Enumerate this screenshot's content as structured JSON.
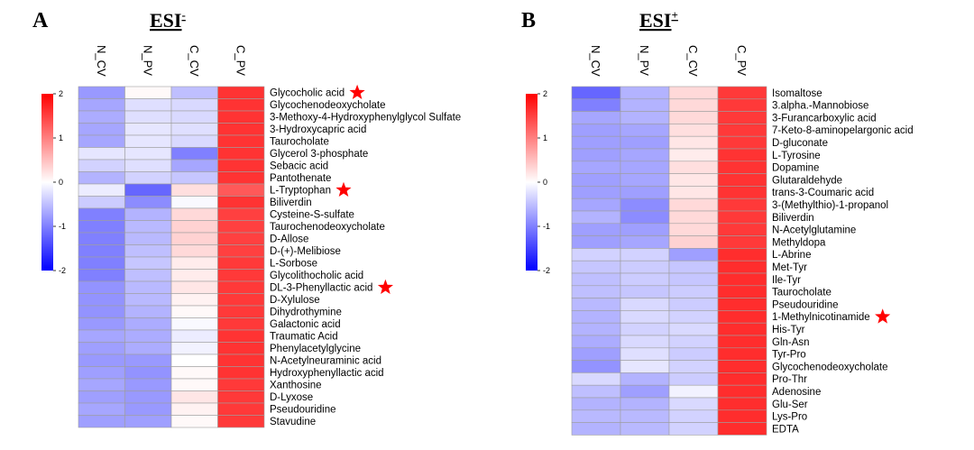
{
  "palette": {
    "low": "#0000ff",
    "mid": "#ffffff",
    "high": "#ff0000",
    "grid": "#9e9e9e",
    "star": "#ff0000"
  },
  "chart_data": [
    {
      "type": "heatmap",
      "panel_label": "A",
      "title_main": "ESI",
      "title_sup": "-",
      "columns": [
        "N_CV",
        "N_PV",
        "C_CV",
        "C_PV"
      ],
      "colorbar": {
        "min": -2,
        "max": 2,
        "ticks": [
          "2",
          "1",
          "0",
          "-1",
          "-2"
        ]
      },
      "rows": [
        {
          "name": "Glycocholic acid",
          "values": [
            -0.8,
            0.05,
            -0.5,
            1.6
          ],
          "star": true
        },
        {
          "name": "Glycochenodeoxycholate",
          "values": [
            -0.7,
            -0.25,
            -0.3,
            1.6
          ],
          "star": false
        },
        {
          "name": "3-Methoxy-4-Hydroxyphenylglycol Sulfate",
          "values": [
            -0.65,
            -0.25,
            -0.3,
            1.6
          ],
          "star": false
        },
        {
          "name": "3-Hydroxycapric acid",
          "values": [
            -0.7,
            -0.2,
            -0.25,
            1.6
          ],
          "star": false
        },
        {
          "name": "Taurocholate",
          "values": [
            -0.7,
            -0.2,
            -0.3,
            1.6
          ],
          "star": false
        },
        {
          "name": "Glycerol 3-phosphate",
          "values": [
            -0.2,
            -0.2,
            -1.0,
            1.6
          ],
          "star": false
        },
        {
          "name": "Sebacic acid",
          "values": [
            -0.35,
            -0.25,
            -0.7,
            1.6
          ],
          "star": false
        },
        {
          "name": "Pantothenate",
          "values": [
            -0.6,
            -0.35,
            -0.45,
            1.6
          ],
          "star": false
        },
        {
          "name": "L-Tryptophan",
          "values": [
            -0.15,
            -1.2,
            0.25,
            1.3
          ],
          "star": true
        },
        {
          "name": "Biliverdin",
          "values": [
            -0.4,
            -0.9,
            -0.05,
            1.6
          ],
          "star": false
        },
        {
          "name": "Cysteine-S-sulfate",
          "values": [
            -1.0,
            -0.6,
            0.3,
            1.5
          ],
          "star": false
        },
        {
          "name": "Taurochenodeoxycholate",
          "values": [
            -1.0,
            -0.55,
            0.35,
            1.5
          ],
          "star": false
        },
        {
          "name": "D-Allose",
          "values": [
            -1.0,
            -0.55,
            0.35,
            1.5
          ],
          "star": false
        },
        {
          "name": "D-(+)-Melibiose",
          "values": [
            -1.0,
            -0.5,
            0.3,
            1.5
          ],
          "star": false
        },
        {
          "name": "L-Sorbose",
          "values": [
            -1.0,
            -0.45,
            0.15,
            1.55
          ],
          "star": false
        },
        {
          "name": "Glycolithocholic acid",
          "values": [
            -1.0,
            -0.5,
            0.15,
            1.55
          ],
          "star": false
        },
        {
          "name": "DL-3-Phenyllactic acid",
          "values": [
            -0.85,
            -0.55,
            0.2,
            1.55
          ],
          "star": true
        },
        {
          "name": "D-Xylulose",
          "values": [
            -0.85,
            -0.55,
            0.1,
            1.55
          ],
          "star": false
        },
        {
          "name": "Dihydrothymine",
          "values": [
            -0.85,
            -0.6,
            0.05,
            1.55
          ],
          "star": false
        },
        {
          "name": "Galactonic acid",
          "values": [
            -0.8,
            -0.65,
            -0.05,
            1.55
          ],
          "star": false
        },
        {
          "name": "Traumatic Acid",
          "values": [
            -0.7,
            -0.65,
            -0.15,
            1.6
          ],
          "star": false
        },
        {
          "name": "Phenylacetylglycine",
          "values": [
            -0.75,
            -0.65,
            -0.1,
            1.6
          ],
          "star": false
        },
        {
          "name": "N-Acetylneuraminic acid",
          "values": [
            -0.8,
            -0.8,
            0.0,
            1.6
          ],
          "star": false
        },
        {
          "name": "Hydroxyphenyllactic acid",
          "values": [
            -0.75,
            -0.85,
            0.05,
            1.6
          ],
          "star": false
        },
        {
          "name": "Xanthosine",
          "values": [
            -0.7,
            -0.8,
            0.05,
            1.55
          ],
          "star": false
        },
        {
          "name": "D-Lyxose",
          "values": [
            -0.75,
            -0.8,
            0.2,
            1.55
          ],
          "star": false
        },
        {
          "name": "Pseudouridine",
          "values": [
            -0.7,
            -0.8,
            0.1,
            1.55
          ],
          "star": false
        },
        {
          "name": "Stavudine",
          "values": [
            -0.75,
            -0.75,
            0.05,
            1.55
          ],
          "star": false
        }
      ]
    },
    {
      "type": "heatmap",
      "panel_label": "B",
      "title_main": "ESI",
      "title_sup": "+",
      "columns": [
        "N_CV",
        "N_PV",
        "C_CV",
        "C_PV"
      ],
      "colorbar": {
        "min": -2,
        "max": 2,
        "ticks": [
          "2",
          "1",
          "0",
          "-1",
          "-2"
        ]
      },
      "rows": [
        {
          "name": "Isomaltose",
          "values": [
            -1.2,
            -0.6,
            0.3,
            1.55
          ],
          "star": false
        },
        {
          "name": "3.alpha.-Mannobiose",
          "values": [
            -1.0,
            -0.6,
            0.3,
            1.55
          ],
          "star": false
        },
        {
          "name": "3-Furancarboxylic acid",
          "values": [
            -0.7,
            -0.6,
            0.3,
            1.55
          ],
          "star": false
        },
        {
          "name": "7-Keto-8-aminopelargonic acid",
          "values": [
            -0.75,
            -0.7,
            0.25,
            1.55
          ],
          "star": false
        },
        {
          "name": "D-gluconate",
          "values": [
            -0.75,
            -0.75,
            0.2,
            1.55
          ],
          "star": false
        },
        {
          "name": "L-Tyrosine",
          "values": [
            -0.75,
            -0.7,
            0.15,
            1.6
          ],
          "star": false
        },
        {
          "name": "Dopamine",
          "values": [
            -0.7,
            -0.7,
            0.25,
            1.6
          ],
          "star": false
        },
        {
          "name": "Glutaraldehyde",
          "values": [
            -0.75,
            -0.7,
            0.2,
            1.6
          ],
          "star": false
        },
        {
          "name": "trans-3-Coumaric acid",
          "values": [
            -0.75,
            -0.75,
            0.2,
            1.6
          ],
          "star": false
        },
        {
          "name": "3-(Methylthio)-1-propanol",
          "values": [
            -0.7,
            -0.9,
            0.3,
            1.55
          ],
          "star": false
        },
        {
          "name": "Biliverdin",
          "values": [
            -0.6,
            -0.9,
            0.3,
            1.55
          ],
          "star": false
        },
        {
          "name": "N-Acetylglutamine",
          "values": [
            -0.75,
            -0.75,
            0.3,
            1.55
          ],
          "star": false
        },
        {
          "name": "Methyldopa",
          "values": [
            -0.75,
            -0.7,
            0.35,
            1.55
          ],
          "star": false
        },
        {
          "name": "L-Abrine",
          "values": [
            -0.35,
            -0.35,
            -0.75,
            1.65
          ],
          "star": false
        },
        {
          "name": "Met-Tyr",
          "values": [
            -0.45,
            -0.4,
            -0.45,
            1.65
          ],
          "star": false
        },
        {
          "name": "Ile-Tyr",
          "values": [
            -0.5,
            -0.4,
            -0.45,
            1.65
          ],
          "star": false
        },
        {
          "name": "Taurocholate",
          "values": [
            -0.5,
            -0.45,
            -0.4,
            1.65
          ],
          "star": false
        },
        {
          "name": "Pseudouridine",
          "values": [
            -0.55,
            -0.3,
            -0.4,
            1.65
          ],
          "star": false
        },
        {
          "name": "1-Methylnicotinamide",
          "values": [
            -0.6,
            -0.3,
            -0.35,
            1.65
          ],
          "star": true
        },
        {
          "name": "His-Tyr",
          "values": [
            -0.6,
            -0.35,
            -0.3,
            1.65
          ],
          "star": false
        },
        {
          "name": "Gln-Asn",
          "values": [
            -0.65,
            -0.3,
            -0.35,
            1.65
          ],
          "star": false
        },
        {
          "name": "Tyr-Pro",
          "values": [
            -0.75,
            -0.25,
            -0.4,
            1.65
          ],
          "star": false
        },
        {
          "name": "Glycochenodeoxycholate",
          "values": [
            -0.85,
            -0.2,
            -0.35,
            1.65
          ],
          "star": false
        },
        {
          "name": "Pro-Thr",
          "values": [
            -0.3,
            -0.6,
            -0.4,
            1.65
          ],
          "star": false
        },
        {
          "name": "Adenosine",
          "values": [
            -0.5,
            -0.75,
            -0.1,
            1.65
          ],
          "star": false
        },
        {
          "name": "Glu-Ser",
          "values": [
            -0.6,
            -0.6,
            -0.3,
            1.65
          ],
          "star": false
        },
        {
          "name": "Lys-Pro",
          "values": [
            -0.55,
            -0.55,
            -0.35,
            1.65
          ],
          "star": false
        },
        {
          "name": "EDTA",
          "values": [
            -0.6,
            -0.55,
            -0.35,
            1.65
          ],
          "star": false
        }
      ]
    }
  ]
}
